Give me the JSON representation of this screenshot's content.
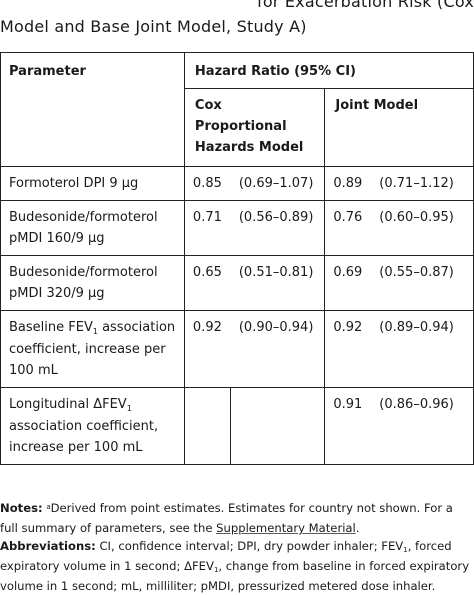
{
  "caption": {
    "marker": "a",
    "line1": "for Exacerbation Risk (Cox",
    "line2": "Model and Base Joint Model, Study A)"
  },
  "table": {
    "header": {
      "parameter": "Parameter",
      "hazard_ratio": "Hazard Ratio (95% CI)",
      "cox_line1": "Cox",
      "cox_line2": "Proportional",
      "cox_line3": "Hazards Model",
      "joint": "Joint Model"
    },
    "rows": [
      {
        "label_lines": [
          "Formoterol DPI 9 µg"
        ],
        "cox_hr": "0.85",
        "cox_ci": "(0.69–1.07)",
        "joint_hr": "0.89",
        "joint_ci": "(0.71–1.12)"
      },
      {
        "label_lines": [
          "Budesonide/formoterol",
          "pMDI 160/9 µg"
        ],
        "cox_hr": "0.71",
        "cox_ci": "(0.56–0.89)",
        "joint_hr": "0.76",
        "joint_ci": "(0.60–0.95)"
      },
      {
        "label_lines": [
          "Budesonide/formoterol",
          "pMDI 320/9 µg"
        ],
        "cox_hr": "0.65",
        "cox_ci": "(0.51–0.81)",
        "joint_hr": "0.69",
        "joint_ci": "(0.55–0.87)"
      },
      {
        "label_prefix": "Baseline FEV",
        "label_sub": "1",
        "label_suffix": " association",
        "label_lines_rest": [
          "coefficient, increase per",
          "100 mL"
        ],
        "cox_hr": "0.92",
        "cox_ci": "(0.90–0.94)",
        "joint_hr": "0.92",
        "joint_ci": "(0.89–0.94)"
      },
      {
        "label_prefix": "Longitudinal ΔFEV",
        "label_sub": "1",
        "label_suffix": "",
        "label_lines_rest": [
          "association coefficient,",
          "increase per 100 mL"
        ],
        "cox_hr": "",
        "cox_ci": "",
        "joint_hr": "0.91",
        "joint_ci": "(0.86–0.96)"
      }
    ]
  },
  "notes": {
    "notes_label": "Notes:",
    "notes_sup": "a",
    "notes_text1": "Derived from point estimates. Estimates for country not shown. For a full summary of parameters, see the ",
    "notes_link": "Supplementary Material",
    "notes_text2": ".",
    "abbr_label": "Abbreviations:",
    "abbr_text1": " CI, confidence interval; DPI, dry powder inhaler; FEV",
    "abbr_sub1": "1",
    "abbr_text2": ", forced expiratory volume in 1 second; ΔFEV",
    "abbr_sub2": "1",
    "abbr_text3": ", change from baseline in forced expiratory volume in 1 second; mL, milliliter; pMDI, pressurized metered dose inhaler."
  }
}
